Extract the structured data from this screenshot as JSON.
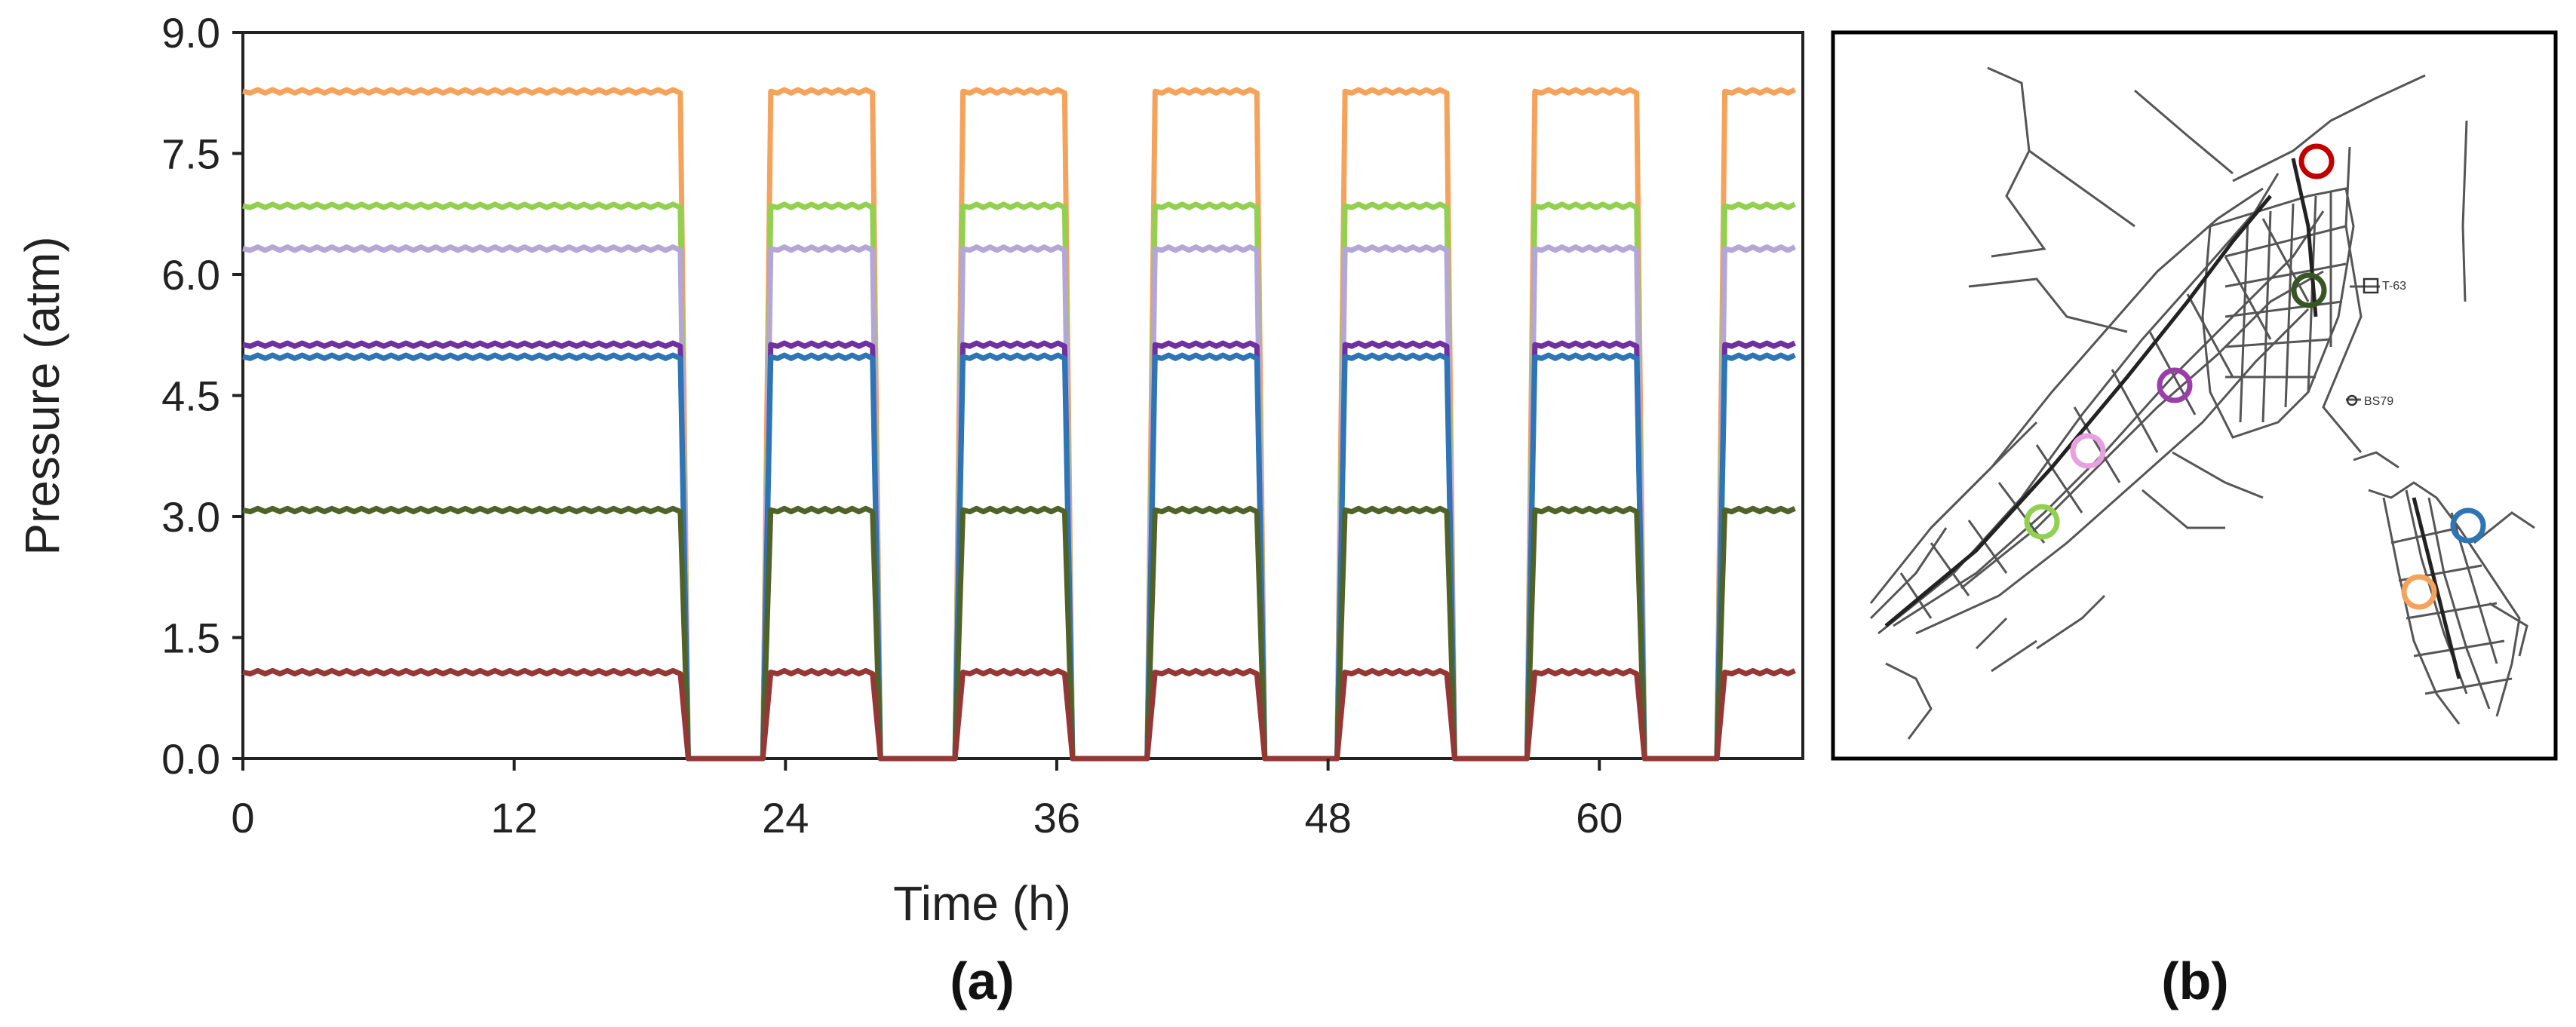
{
  "panels": {
    "a_label": "(a)",
    "b_label": "(b)"
  },
  "chart_data": {
    "type": "line",
    "xlabel": "Time (h)",
    "ylabel": "Pressure (atm)",
    "xlim": [
      0,
      69
    ],
    "ylim": [
      0,
      9
    ],
    "xticks": [
      0,
      12,
      24,
      36,
      48,
      60
    ],
    "yticks": [
      0.0,
      1.5,
      3.0,
      4.5,
      6.0,
      7.5,
      9.0
    ],
    "ytick_labels": [
      "0.0",
      "1.5",
      "3.0",
      "4.5",
      "6.0",
      "7.5",
      "9.0"
    ],
    "grid": false,
    "on_intervals_h": [
      [
        0,
        19.7
      ],
      [
        23.0,
        28.2
      ],
      [
        31.5,
        36.7
      ],
      [
        40.0,
        45.2
      ],
      [
        48.4,
        53.6
      ],
      [
        56.8,
        62.0
      ],
      [
        65.2,
        69.0
      ]
    ],
    "series": [
      {
        "color": "#F5A25B",
        "values_on": 8.27,
        "values_off": 0
      },
      {
        "color": "#92D050",
        "values_on": 6.85,
        "values_off": 0
      },
      {
        "color": "#B4A7D6",
        "values_on": 6.32,
        "values_off": 0
      },
      {
        "color": "#7030A0",
        "values_on": 5.13,
        "values_off": 0
      },
      {
        "color": "#2E75B6",
        "values_on": 4.98,
        "values_off": 0
      },
      {
        "color": "#4F6228",
        "values_on": 3.08,
        "values_off": 0
      },
      {
        "color": "#953735",
        "values_on": 1.07,
        "values_off": 0
      }
    ]
  },
  "map": {
    "labels": [
      "T-63",
      "BS79"
    ],
    "markers": [
      {
        "color": "#C00000"
      },
      {
        "color": "#375623"
      },
      {
        "color": "#9A3FA8"
      },
      {
        "color": "#E8A0E0"
      },
      {
        "color": "#92D050"
      },
      {
        "color": "#2E75B6"
      },
      {
        "color": "#F5A25B"
      }
    ]
  }
}
